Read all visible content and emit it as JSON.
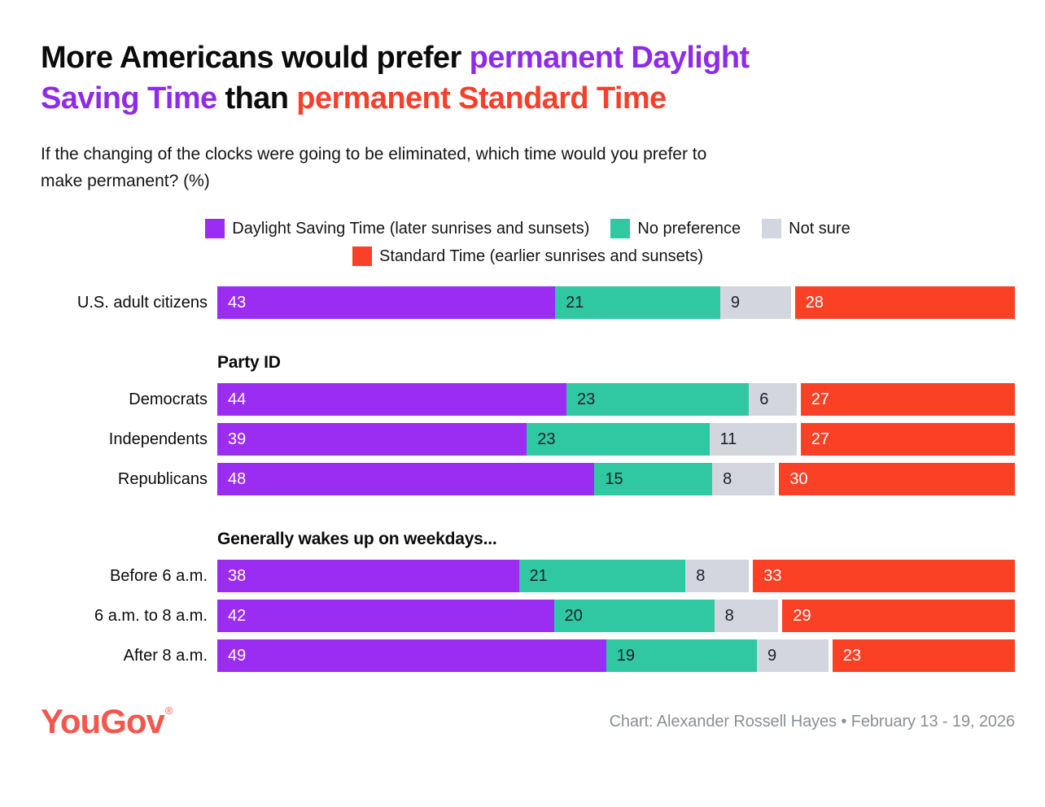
{
  "title": {
    "black1": "More Americans would prefer ",
    "purple1": "permanent Daylight",
    "purple2": "Saving Time",
    "black2": " than ",
    "red1": "permanent Standard Time"
  },
  "subtitle": {
    "line1": "If the changing of the clocks were going to be eliminated, which time would you prefer to",
    "line2": "make permanent? (%)"
  },
  "footer": {
    "logo_text": "YouGov",
    "registered_mark": "®",
    "credit": "Chart: Alexander Rossell Hayes • February 13 - 19, 2026"
  },
  "colors": {
    "title_purple": "#8e2be8",
    "title_red": "#f4402c",
    "logo_coral": "#f4574d",
    "credit_gray": "#8a9096"
  },
  "chart_data": {
    "type": "bar",
    "orientation": "horizontal_stacked",
    "unit": "percent",
    "legend_position": "top-center",
    "series": [
      {
        "name": "Daylight Saving Time (later sunrises and sunsets)",
        "color": "#9b2cf2",
        "value_label_color": "#ffffff"
      },
      {
        "name": "No preference",
        "color": "#2fc8a2",
        "value_label_color": "#1d2025"
      },
      {
        "name": "Not sure",
        "color": "#d3d6de",
        "value_label_color": "#1d2025"
      },
      {
        "name": "Standard Time (earlier sunrises and sunsets)",
        "color": "#fb4125",
        "value_label_color": "#ffffff"
      }
    ],
    "groups": [
      {
        "header": "",
        "rows": [
          {
            "label": "U.S. adult citizens",
            "values": [
              43,
              21,
              9,
              28
            ]
          }
        ]
      },
      {
        "header": "Party ID",
        "rows": [
          {
            "label": "Democrats",
            "values": [
              44,
              23,
              6,
              27
            ]
          },
          {
            "label": "Independents",
            "values": [
              39,
              23,
              11,
              27
            ]
          },
          {
            "label": "Republicans",
            "values": [
              48,
              15,
              8,
              30
            ]
          }
        ]
      },
      {
        "header": "Generally wakes up on weekdays...",
        "rows": [
          {
            "label": "Before 6 a.m.",
            "values": [
              38,
              21,
              8,
              33
            ]
          },
          {
            "label": "6 a.m. to 8 a.m.",
            "values": [
              42,
              20,
              8,
              29
            ]
          },
          {
            "label": "After 8 a.m.",
            "values": [
              49,
              19,
              9,
              23
            ]
          }
        ]
      }
    ]
  }
}
